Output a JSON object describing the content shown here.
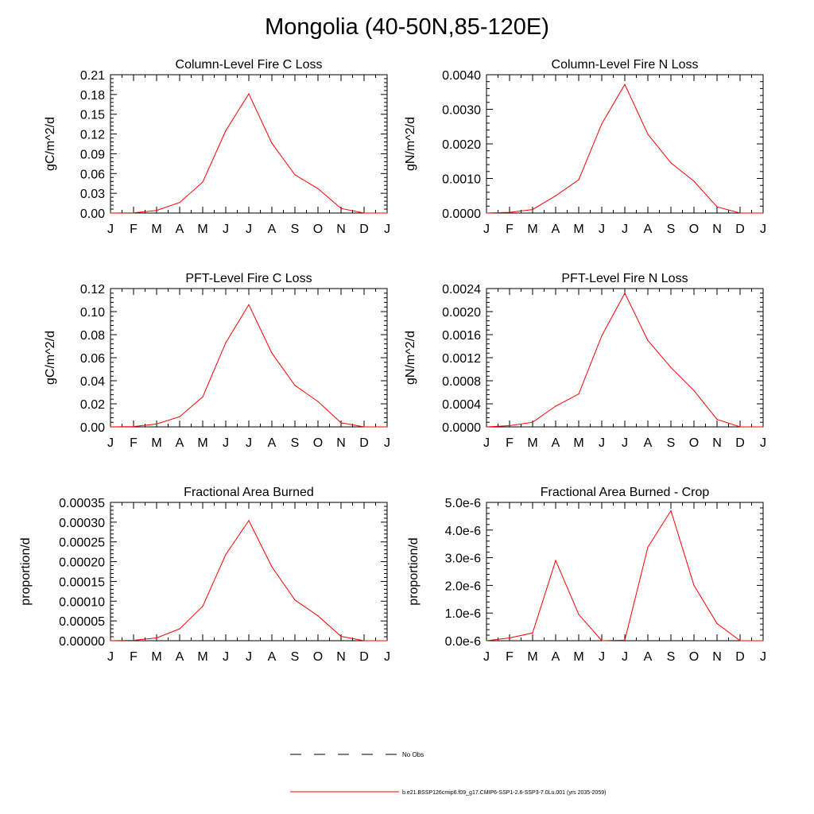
{
  "title": "Mongolia (40-50N,85-120E)",
  "colors": {
    "series": "#ff0000",
    "obs": "#000000",
    "axis": "#000000"
  },
  "legend": {
    "obs_label": "No Obs",
    "model_label": "b.e21.BSSP126cmip6.f09_g17.CMIP6-SSP1-2.6-SSP3-7.0Lu.001 (yrs 2035-2059)"
  },
  "chart_data": [
    {
      "type": "line",
      "title": "Column-Level Fire C Loss",
      "ylabel": "gC/m^2/d",
      "categories": [
        "J",
        "F",
        "M",
        "A",
        "M",
        "J",
        "J",
        "A",
        "S",
        "O",
        "N",
        "D",
        "J"
      ],
      "ylim": [
        0,
        0.21
      ],
      "yticks": [
        0.0,
        0.03,
        0.06,
        0.09,
        0.12,
        0.15,
        0.18,
        0.21
      ],
      "ytick_labels": [
        "0.00",
        "0.03",
        "0.06",
        "0.09",
        "0.12",
        "0.15",
        "0.18",
        "0.21"
      ],
      "series": [
        {
          "values": [
            0.0,
            0.0003,
            0.004,
            0.016,
            0.047,
            0.125,
            0.181,
            0.106,
            0.058,
            0.037,
            0.007,
            0.0,
            0.0
          ]
        }
      ]
    },
    {
      "type": "line",
      "title": "Column-Level Fire N Loss",
      "ylabel": "gN/m^2/d",
      "categories": [
        "J",
        "F",
        "M",
        "A",
        "M",
        "J",
        "J",
        "A",
        "S",
        "O",
        "N",
        "D",
        "J"
      ],
      "ylim": [
        0,
        0.004
      ],
      "yticks": [
        0.0,
        0.001,
        0.002,
        0.003,
        0.004
      ],
      "ytick_labels": [
        "0.0000",
        "0.0010",
        "0.0020",
        "0.0030",
        "0.0040"
      ],
      "series": [
        {
          "values": [
            0.0,
            2e-05,
            0.0001,
            0.0005,
            0.00096,
            0.00258,
            0.00372,
            0.00228,
            0.00145,
            0.00092,
            0.00018,
            0.0,
            0.0
          ]
        }
      ]
    },
    {
      "type": "line",
      "title": "PFT-Level Fire C Loss",
      "ylabel": "gC/m^2/d",
      "categories": [
        "J",
        "F",
        "M",
        "A",
        "M",
        "J",
        "J",
        "A",
        "S",
        "O",
        "N",
        "D",
        "J"
      ],
      "ylim": [
        0,
        0.12
      ],
      "yticks": [
        0.0,
        0.02,
        0.04,
        0.06,
        0.08,
        0.1,
        0.12
      ],
      "ytick_labels": [
        "0.00",
        "0.02",
        "0.04",
        "0.06",
        "0.08",
        "0.10",
        "0.12"
      ],
      "series": [
        {
          "values": [
            0.0,
            0.0003,
            0.0025,
            0.0088,
            0.026,
            0.073,
            0.106,
            0.064,
            0.036,
            0.022,
            0.0035,
            0.0,
            0.0
          ]
        }
      ]
    },
    {
      "type": "line",
      "title": "PFT-Level Fire N Loss",
      "ylabel": "gN/m^2/d",
      "categories": [
        "J",
        "F",
        "M",
        "A",
        "M",
        "J",
        "J",
        "A",
        "S",
        "O",
        "N",
        "D",
        "J"
      ],
      "ylim": [
        0,
        0.0024
      ],
      "yticks": [
        0.0,
        0.0004,
        0.0008,
        0.0012,
        0.0016,
        0.002,
        0.0024
      ],
      "ytick_labels": [
        "0.0000",
        "0.0004",
        "0.0008",
        "0.0012",
        "0.0016",
        "0.0020",
        "0.0024"
      ],
      "series": [
        {
          "values": [
            0.0,
            2e-05,
            8e-05,
            0.00036,
            0.00057,
            0.00158,
            0.00232,
            0.0015,
            0.00103,
            0.00063,
            0.00013,
            0.0,
            0.0
          ]
        }
      ]
    },
    {
      "type": "line",
      "title": "Fractional Area Burned",
      "ylabel": "proportion/d",
      "categories": [
        "J",
        "F",
        "M",
        "A",
        "M",
        "J",
        "J",
        "A",
        "S",
        "O",
        "N",
        "D",
        "J"
      ],
      "ylim": [
        0,
        0.00035
      ],
      "yticks": [
        0.0,
        5e-05,
        0.0001,
        0.00015,
        0.0002,
        0.00025,
        0.0003,
        0.00035
      ],
      "ytick_labels": [
        "0.00000",
        "0.00005",
        "0.00010",
        "0.00015",
        "0.00020",
        "0.00025",
        "0.00030",
        "0.00035"
      ],
      "series": [
        {
          "values": [
            0.0,
            1e-06,
            7e-06,
            3e-05,
            8.7e-05,
            0.000218,
            0.000304,
            0.000187,
            0.000103,
            6.3e-05,
            1.1e-05,
            0.0,
            0.0
          ]
        }
      ]
    },
    {
      "type": "line",
      "title": "Fractional Area Burned - Crop",
      "ylabel": "proportion/d",
      "categories": [
        "J",
        "F",
        "M",
        "A",
        "M",
        "J",
        "J",
        "A",
        "S",
        "O",
        "N",
        "D",
        "J"
      ],
      "ylim": [
        0,
        5e-06
      ],
      "yticks": [
        0.0,
        1e-06,
        2e-06,
        3e-06,
        4e-06,
        5e-06
      ],
      "ytick_labels": [
        "0.0e-6",
        "1.0e-6",
        "2.0e-6",
        "3.0e-6",
        "4.0e-6",
        "5.0e-6"
      ],
      "series": [
        {
          "values": [
            0.0,
            1e-07,
            2.8e-07,
            2.9e-06,
            9.5e-07,
            0.0,
            2e-08,
            3.38e-06,
            4.7e-06,
            2e-06,
            6.2e-07,
            0.0,
            0.0
          ]
        }
      ]
    }
  ]
}
